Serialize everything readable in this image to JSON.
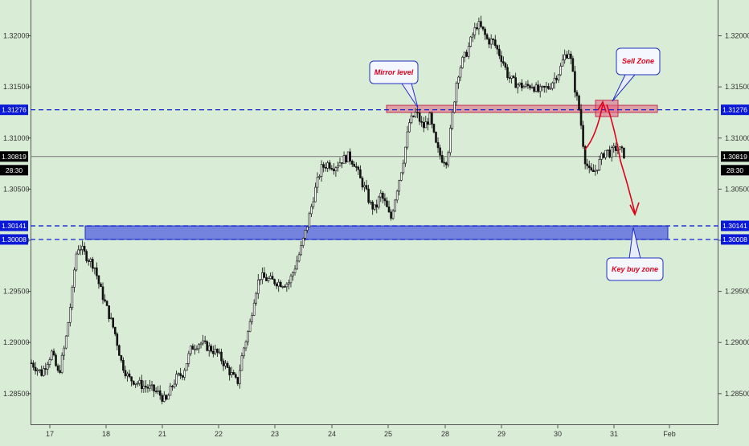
{
  "chart_data": {
    "type": "candlestick",
    "instrument_timeframe": "",
    "current_price_label": "1.30819",
    "countdown_label": "28:30",
    "y_axis": {
      "range": [
        1.282,
        1.3235
      ],
      "ticks": [
        "1.32000",
        "1.31500",
        "1.31000",
        "1.30500",
        "1.30000",
        "1.29500",
        "1.29000",
        "1.28500"
      ]
    },
    "x_axis": {
      "ticks": [
        "17",
        "18",
        "21",
        "22",
        "23",
        "24",
        "25",
        "28",
        "29",
        "30",
        "31",
        "Feb"
      ]
    },
    "levels": [
      {
        "label": "1.31276",
        "price": 1.31276,
        "style": "dashed-blue"
      },
      {
        "label": "1.30141",
        "price": 1.30141,
        "style": "dashed-blue"
      },
      {
        "label": "1.30008",
        "price": 1.30008,
        "style": "dashed-blue"
      },
      {
        "label": "1.30819",
        "price": 1.30819,
        "style": "solid-gray"
      }
    ],
    "zones": [
      {
        "name": "mirror-level-zone",
        "low": 1.3125,
        "high": 1.3132,
        "color": "#e06080"
      },
      {
        "name": "sell-zone-box",
        "low": 1.3121,
        "high": 1.3137,
        "color": "#e06080"
      },
      {
        "name": "key-buy-zone",
        "low": 1.30008,
        "high": 1.30141,
        "color": "#5060e0"
      }
    ],
    "annotations": [
      {
        "text": "Mirror level"
      },
      {
        "text": "Sell Zone"
      },
      {
        "text": "Key buy zone"
      }
    ],
    "price_path": [
      [
        0.0,
        1.288
      ],
      [
        0.6,
        1.287
      ],
      [
        1.2,
        1.289
      ],
      [
        1.6,
        1.2868
      ],
      [
        2.0,
        1.29
      ],
      [
        2.4,
        1.295
      ],
      [
        2.6,
        1.2985
      ],
      [
        2.8,
        1.2995
      ],
      [
        3.2,
        1.2985
      ],
      [
        3.7,
        1.2975
      ],
      [
        4.0,
        1.2955
      ],
      [
        4.4,
        1.2935
      ],
      [
        4.9,
        1.291
      ],
      [
        5.3,
        1.288
      ],
      [
        5.7,
        1.2865
      ],
      [
        6.1,
        1.2862
      ],
      [
        6.5,
        1.2858
      ],
      [
        7.0,
        1.2855
      ],
      [
        7.5,
        1.285
      ],
      [
        7.9,
        1.2842
      ],
      [
        8.2,
        1.2855
      ],
      [
        8.5,
        1.2865
      ],
      [
        8.9,
        1.287
      ],
      [
        9.4,
        1.2895
      ],
      [
        9.9,
        1.29
      ],
      [
        10.4,
        1.2895
      ],
      [
        10.9,
        1.289
      ],
      [
        11.3,
        1.288
      ],
      [
        11.7,
        1.287
      ],
      [
        12.1,
        1.286
      ],
      [
        12.4,
        1.289
      ],
      [
        12.8,
        1.2915
      ],
      [
        13.1,
        1.2945
      ],
      [
        13.4,
        1.2965
      ],
      [
        13.8,
        1.2962
      ],
      [
        14.2,
        1.296
      ],
      [
        14.7,
        1.2958
      ],
      [
        15.1,
        1.2958
      ],
      [
        15.4,
        1.297
      ],
      [
        15.8,
        1.299
      ],
      [
        16.2,
        1.3015
      ],
      [
        16.6,
        1.3045
      ],
      [
        17.0,
        1.307
      ],
      [
        17.4,
        1.3075
      ],
      [
        17.8,
        1.3072
      ],
      [
        18.2,
        1.3078
      ],
      [
        18.6,
        1.3082
      ],
      [
        19.0,
        1.3075
      ],
      [
        19.3,
        1.306
      ],
      [
        19.6,
        1.305
      ],
      [
        19.9,
        1.3035
      ],
      [
        20.2,
        1.303
      ],
      [
        20.5,
        1.3045
      ],
      [
        20.8,
        1.3035
      ],
      [
        21.1,
        1.302
      ],
      [
        21.4,
        1.3045
      ],
      [
        21.8,
        1.3075
      ],
      [
        22.2,
        1.3115
      ],
      [
        22.6,
        1.3125
      ],
      [
        23.0,
        1.311
      ],
      [
        23.4,
        1.312
      ],
      [
        23.8,
        1.309
      ],
      [
        24.1,
        1.308
      ],
      [
        24.4,
        1.3078
      ],
      [
        24.7,
        1.312
      ],
      [
        25.0,
        1.316
      ],
      [
        25.3,
        1.3175
      ],
      [
        25.6,
        1.3185
      ],
      [
        25.9,
        1.32
      ],
      [
        26.2,
        1.3212
      ],
      [
        26.5,
        1.3205
      ],
      [
        26.8,
        1.3195
      ],
      [
        27.1,
        1.3195
      ],
      [
        27.4,
        1.3185
      ],
      [
        27.7,
        1.3175
      ],
      [
        28.0,
        1.316
      ],
      [
        28.3,
        1.3155
      ],
      [
        28.6,
        1.3152
      ],
      [
        29.0,
        1.315
      ],
      [
        29.4,
        1.3152
      ],
      [
        29.8,
        1.3145
      ],
      [
        30.1,
        1.3148
      ],
      [
        30.4,
        1.315
      ],
      [
        30.7,
        1.3158
      ],
      [
        31.0,
        1.3165
      ],
      [
        31.3,
        1.318
      ],
      [
        31.6,
        1.3185
      ],
      [
        31.9,
        1.315
      ],
      [
        32.2,
        1.3125
      ],
      [
        32.5,
        1.308
      ],
      [
        32.8,
        1.3065
      ],
      [
        33.1,
        1.3068
      ],
      [
        33.4,
        1.3078
      ],
      [
        33.7,
        1.3088
      ],
      [
        34.0,
        1.3085
      ],
      [
        34.3,
        1.309
      ],
      [
        34.6,
        1.3088
      ],
      [
        34.9,
        1.3082
      ]
    ],
    "path_x_range": [
      0,
      40.3
    ],
    "grid": false,
    "legend": "none"
  },
  "palette": {
    "background": "#d9ecd6",
    "candle": "#111111",
    "level_blue": "#1020d0",
    "label_blue": "#0a18d8",
    "label_black": "#000000",
    "callout_border": "#2030c0",
    "annotation_red": "#e0001a"
  }
}
